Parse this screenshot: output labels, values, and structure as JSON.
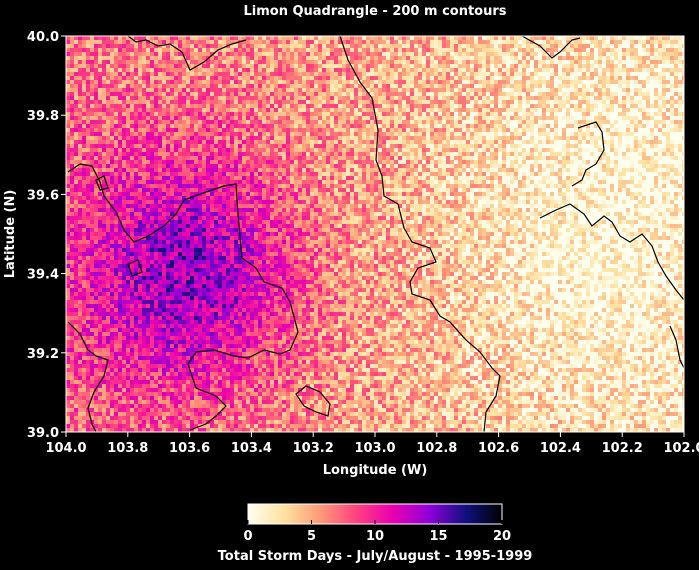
{
  "chart_data": {
    "type": "heatmap",
    "title": "Limon Quadrangle  -  200 m contours",
    "xlabel": "Longitude (W)",
    "ylabel": "Latitude (N)",
    "xlim": [
      104.0,
      102.0
    ],
    "ylim": [
      39.0,
      40.0
    ],
    "x_ticks": [
      "104.0",
      "103.8",
      "103.6",
      "103.4",
      "103.2",
      "103.0",
      "102.8",
      "102.6",
      "102.4",
      "102.2",
      "102.0"
    ],
    "y_ticks": [
      "39.0",
      "39.2",
      "39.4",
      "39.6",
      "39.8",
      "40.0"
    ],
    "grid": false,
    "colorbar": {
      "label": "Total Storm Days  -  July/August  -  1995-1999",
      "min": 0,
      "max": 20,
      "ticks": [
        "0",
        "5",
        "10",
        "15",
        "20"
      ],
      "colors": [
        "#fffff0",
        "#ffe1a0",
        "#ff9a78",
        "#ff4080",
        "#e800b0",
        "#9000d8",
        "#101080",
        "#000000"
      ]
    },
    "field_summary": {
      "western_high_center": {
        "lon": 103.6,
        "lat": 39.4,
        "value": 13
      },
      "eastern_low_center": {
        "lon": 102.3,
        "lat": 39.5,
        "value": 2
      },
      "background_value": 5
    }
  }
}
